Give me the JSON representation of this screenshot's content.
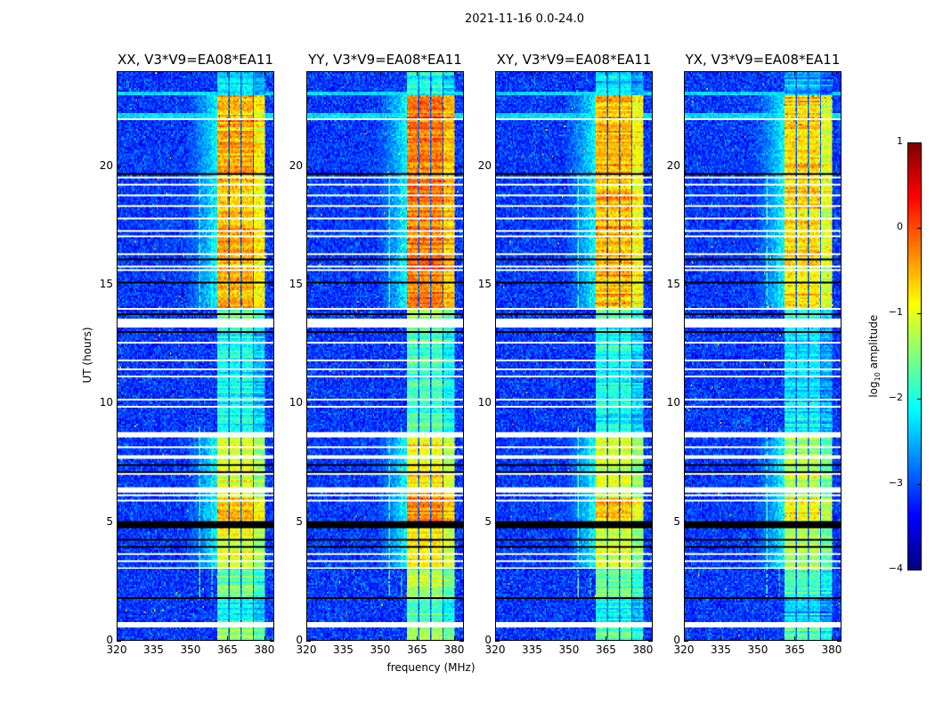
{
  "chart_data": {
    "type": "heatmap",
    "suptitle": "2021-11-16 0.0-24.0",
    "xlabel": "frequency (MHz)",
    "ylabel": "UT (hours)",
    "xlim": [
      320,
      384
    ],
    "ylim": [
      0,
      24
    ],
    "xticks": [
      320,
      335,
      350,
      365,
      380
    ],
    "yticks": [
      0,
      5,
      10,
      15,
      20
    ],
    "colorbar": {
      "label_prefix": "log",
      "label_sub": "10",
      "label_suffix": " amplitude",
      "colormap": "jet",
      "vmin": -4,
      "vmax": 1,
      "ticks": [
        1,
        0,
        -1,
        -2,
        -3,
        -4
      ]
    },
    "panels": [
      {
        "title": "XX, V3*V9=EA08*EA11",
        "gain": 0.0
      },
      {
        "title": "YY, V3*V9=EA08*EA11",
        "gain": 0.25
      },
      {
        "title": "XY, V3*V9=EA08*EA11",
        "gain": -0.05
      },
      {
        "title": "YX, V3*V9=EA08*EA11",
        "gain": -0.25
      }
    ],
    "background_level": -3.1,
    "rfi_band_mhz": [
      361,
      380.5
    ],
    "subband_gaps_mhz": [
      365.7,
      370.6,
      375.6
    ],
    "band_level_vs_time": [
      [
        0.0,
        0.5,
        -1.5
      ],
      [
        0.5,
        1.8,
        -2.0
      ],
      [
        1.8,
        3.0,
        -1.5
      ],
      [
        3.0,
        4.7,
        -1.0
      ],
      [
        5.0,
        6.0,
        -0.6
      ],
      [
        6.0,
        8.8,
        -1.0
      ],
      [
        8.8,
        13.3,
        -2.0
      ],
      [
        13.3,
        14.0,
        -1.6
      ],
      [
        14.0,
        23.0,
        -0.5
      ],
      [
        23.0,
        24.0,
        -2.2
      ]
    ],
    "flagged_rows_white_hours": [
      [
        0.05,
        0.1
      ],
      [
        0.2,
        0.25
      ],
      [
        0.49,
        0.75
      ],
      [
        2.0,
        2.04
      ],
      [
        3.0,
        3.04
      ],
      [
        3.3,
        3.34
      ],
      [
        3.42,
        3.46
      ],
      [
        3.6,
        3.64
      ],
      [
        5.86,
        5.9
      ],
      [
        6.09,
        6.13
      ],
      [
        6.24,
        6.43
      ],
      [
        6.99,
        7.03
      ],
      [
        7.63,
        7.82
      ],
      [
        8.12,
        8.16
      ],
      [
        8.53,
        8.76
      ],
      [
        9.85,
        9.89
      ],
      [
        9.96,
        10.0
      ],
      [
        10.15,
        10.19
      ],
      [
        11.13,
        11.17
      ],
      [
        11.43,
        11.47
      ],
      [
        11.8,
        11.84
      ],
      [
        12.37,
        12.41
      ],
      [
        12.55,
        12.59
      ],
      [
        13.2,
        13.24
      ],
      [
        13.27,
        13.57
      ],
      [
        13.95,
        13.99
      ],
      [
        14.6,
        14.64
      ],
      [
        15.5,
        15.54
      ],
      [
        15.6,
        15.64
      ],
      [
        15.75,
        15.79
      ],
      [
        16.17,
        16.21
      ],
      [
        16.28,
        16.32
      ],
      [
        17.03,
        17.07
      ],
      [
        17.14,
        17.18
      ],
      [
        17.25,
        17.29
      ],
      [
        17.8,
        17.84
      ],
      [
        17.97,
        18.01
      ],
      [
        18.3,
        18.34
      ],
      [
        18.57,
        18.61
      ],
      [
        18.65,
        18.69
      ],
      [
        18.76,
        18.8
      ],
      [
        19.2,
        19.24
      ],
      [
        19.4,
        19.44
      ],
      [
        19.5,
        19.54
      ],
      [
        22.0,
        22.04
      ],
      [
        22.55,
        22.59
      ]
    ],
    "flagged_rows_black_hours": [
      [
        1.73,
        1.77
      ],
      [
        3.9,
        3.94
      ],
      [
        4.2,
        4.24
      ],
      [
        4.74,
        5.04
      ],
      [
        5.23,
        5.27
      ],
      [
        7.07,
        7.11
      ],
      [
        7.37,
        7.41
      ],
      [
        8.23,
        8.27
      ],
      [
        9.06,
        9.1
      ],
      [
        13.0,
        13.04
      ],
      [
        13.76,
        13.8
      ],
      [
        15.1,
        15.14
      ],
      [
        16.05,
        16.09
      ],
      [
        18.87,
        18.91
      ],
      [
        19.66,
        19.7
      ],
      [
        20.45,
        20.49
      ],
      [
        21.2,
        21.24
      ],
      [
        22.85,
        22.88
      ],
      [
        22.92,
        22.95
      ],
      [
        23.0,
        23.03
      ]
    ],
    "cyan_stripes_hours": [
      [
        22.0,
        22.25,
        -2.3
      ],
      [
        23.0,
        23.2,
        -2.3
      ]
    ],
    "narrow_rfi_lines_mhz": [
      353.8,
      356.0,
      358.9
    ]
  }
}
